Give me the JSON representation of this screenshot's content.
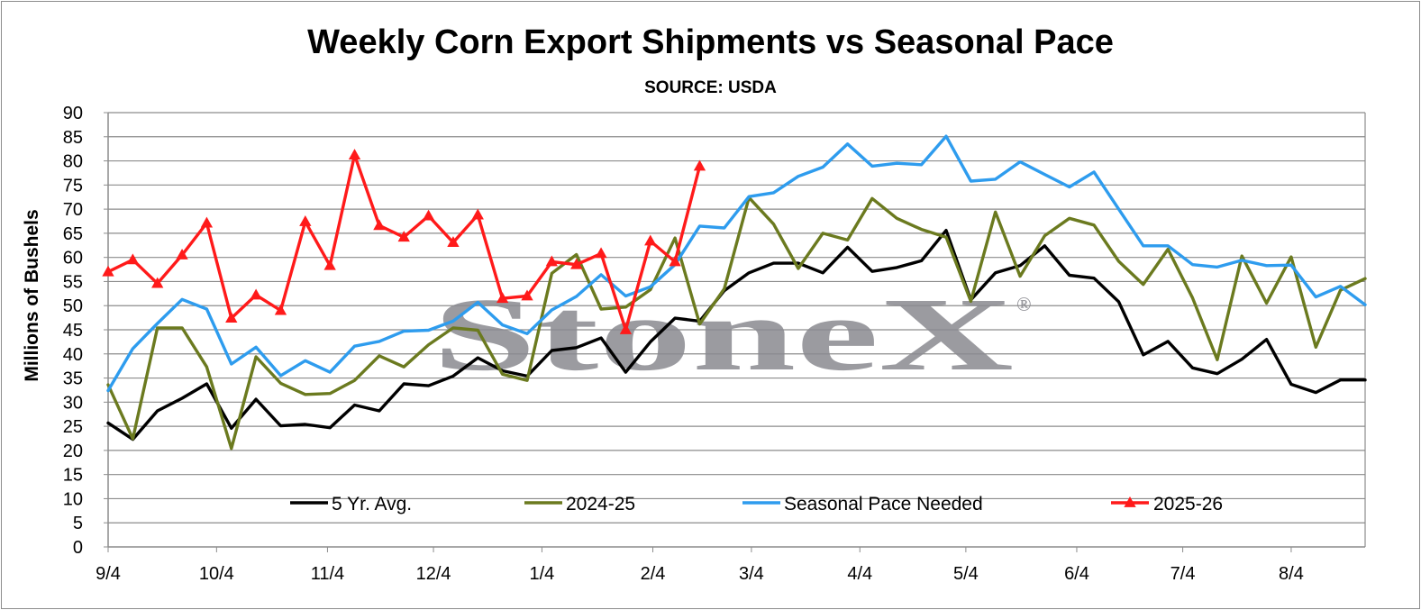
{
  "chart_data": {
    "type": "line",
    "title": "Weekly Corn Export Shipments vs Seasonal Pace",
    "subtitle": "SOURCE: USDA",
    "ylabel": "Millions of Bushels",
    "xlabel": "",
    "ylim": [
      0,
      90
    ],
    "yticks": [
      0,
      5,
      10,
      15,
      20,
      25,
      30,
      35,
      40,
      45,
      50,
      55,
      60,
      65,
      70,
      75,
      80,
      85,
      90
    ],
    "x_tick_labels": [
      {
        "label": "9/4",
        "week": 0
      },
      {
        "label": "10/4",
        "week": 4.4
      },
      {
        "label": "11/4",
        "week": 8.9
      },
      {
        "label": "12/4",
        "week": 13.2
      },
      {
        "label": "1/4",
        "week": 17.6
      },
      {
        "label": "2/4",
        "week": 22.1
      },
      {
        "label": "3/4",
        "week": 26.1
      },
      {
        "label": "4/4",
        "week": 30.5
      },
      {
        "label": "5/4",
        "week": 34.8
      },
      {
        "label": "6/4",
        "week": 39.3
      },
      {
        "label": "7/4",
        "week": 43.6
      },
      {
        "label": "8/4",
        "week": 48.0
      }
    ],
    "week_count": 52,
    "grid": true,
    "legend_position": "bottom-inside",
    "watermark": "StoneX",
    "watermark_mark": "®",
    "series": [
      {
        "name": "5 Yr. Avg.",
        "color": "#000000",
        "marker": "none",
        "values": [
          25.7,
          22.3,
          28.2,
          30.8,
          33.8,
          24.6,
          30.6,
          25.1,
          25.4,
          24.7,
          29.4,
          28.2,
          33.8,
          33.4,
          35.4,
          39.2,
          36.5,
          35.4,
          40.7,
          41.3,
          43.3,
          36.2,
          42.5,
          47.4,
          46.8,
          53.1,
          56.8,
          58.8,
          58.8,
          56.8,
          62.1,
          57.1,
          57.9,
          59.3,
          65.6,
          51.2,
          56.8,
          58.3,
          62.4,
          56.3,
          55.7,
          50.8,
          39.8,
          42.6,
          37.1,
          35.9,
          38.9,
          43.0,
          33.7,
          32.0,
          34.6,
          34.6
        ]
      },
      {
        "name": "2024-25",
        "color": "#6b7a1f",
        "marker": "none",
        "values": [
          33.6,
          22.4,
          45.4,
          45.4,
          37.3,
          20.4,
          39.4,
          33.9,
          31.6,
          31.8,
          34.5,
          39.6,
          37.3,
          41.9,
          45.4,
          44.9,
          35.8,
          34.5,
          56.7,
          60.6,
          49.3,
          49.7,
          53.3,
          64.0,
          46.2,
          53.5,
          72.4,
          66.9,
          57.7,
          65.0,
          63.6,
          72.2,
          68.1,
          65.8,
          64.2,
          50.9,
          69.4,
          56.1,
          64.5,
          68.1,
          66.7,
          59.2,
          54.4,
          61.7,
          51.6,
          38.8,
          60.3,
          50.5,
          60.1,
          41.4,
          53.2,
          55.6
        ]
      },
      {
        "name": "Seasonal Pace Needed",
        "color": "#2e9cee",
        "marker": "none",
        "values": [
          32.4,
          41.1,
          46.3,
          51.3,
          49.3,
          37.9,
          41.4,
          35.5,
          38.6,
          36.2,
          41.6,
          42.6,
          44.7,
          44.9,
          46.8,
          50.7,
          46.0,
          44.2,
          49.1,
          51.9,
          56.4,
          52.0,
          53.9,
          58.5,
          66.5,
          66.1,
          72.6,
          73.4,
          76.8,
          78.7,
          83.5,
          78.9,
          79.5,
          79.2,
          85.1,
          75.8,
          76.2,
          79.8,
          77.2,
          74.6,
          77.7,
          70.0,
          62.4,
          62.4,
          58.5,
          58.0,
          59.4,
          58.3,
          58.4,
          51.8,
          54.0,
          50.2
        ]
      },
      {
        "name": "2025-26",
        "color": "#ff1a1a",
        "marker": "triangle",
        "values": [
          57.0,
          59.5,
          54.6,
          60.5,
          67.1,
          47.4,
          52.2,
          49.0,
          67.4,
          58.3,
          81.2,
          66.6,
          64.2,
          68.6,
          63.1,
          68.8,
          51.5,
          52.0,
          59.1,
          58.5,
          60.8,
          45.0,
          63.4,
          59.1,
          78.9
        ]
      }
    ]
  }
}
